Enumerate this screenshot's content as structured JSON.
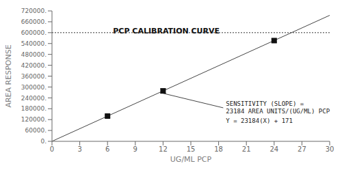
{
  "chart_data": {
    "type": "scatter",
    "title": "PCP CALIBRATION CURVE",
    "xlabel": "UG/ML PCP",
    "ylabel": "AREA RESPONSE",
    "series": [
      {
        "type": "line",
        "color": "#444444",
        "line_style": "solid",
        "x": [
          0,
          30
        ],
        "values": [
          171,
          695691
        ]
      },
      {
        "type": "scatter",
        "color": "#111111",
        "marker": "square",
        "x": [
          6,
          12,
          24
        ],
        "values": [
          139295,
          278339,
          556227
        ],
        "error": [
          6000,
          12000,
          9000
        ]
      }
    ],
    "connector": {
      "color": "#444444",
      "x": [
        12,
        18.5
      ],
      "y": [
        265000,
        185000
      ]
    },
    "annotations": [
      "SENSITIVITY (SLOPE) =",
      "23184 AREA UNITS/(UG/ML) PCP",
      "Y = 23184(X) + 171"
    ],
    "reference_lines": [
      {
        "y": 600000,
        "line_style": "dotted"
      }
    ],
    "xlim": [
      0,
      30
    ],
    "xticks": [
      0,
      3,
      6,
      9,
      12,
      15,
      18,
      21,
      24,
      27,
      30
    ],
    "ylim": [
      0,
      720000
    ],
    "yticks": [
      {
        "value": 0,
        "label": "0."
      },
      {
        "value": 60000,
        "label": "60000."
      },
      {
        "value": 120000,
        "label": "120000."
      },
      {
        "value": 180000,
        "label": "180000."
      },
      {
        "value": 240000,
        "label": "240000."
      },
      {
        "value": 300000,
        "label": "300000."
      },
      {
        "value": 360000,
        "label": "360000."
      },
      {
        "value": 420000,
        "label": "420000."
      },
      {
        "value": 480000,
        "label": "480000."
      },
      {
        "value": 540000,
        "label": "540000."
      },
      {
        "value": 600000,
        "label": "600000."
      },
      {
        "value": 660000,
        "label": "660000."
      },
      {
        "value": 720000,
        "label": "720000."
      }
    ],
    "grid": false
  }
}
